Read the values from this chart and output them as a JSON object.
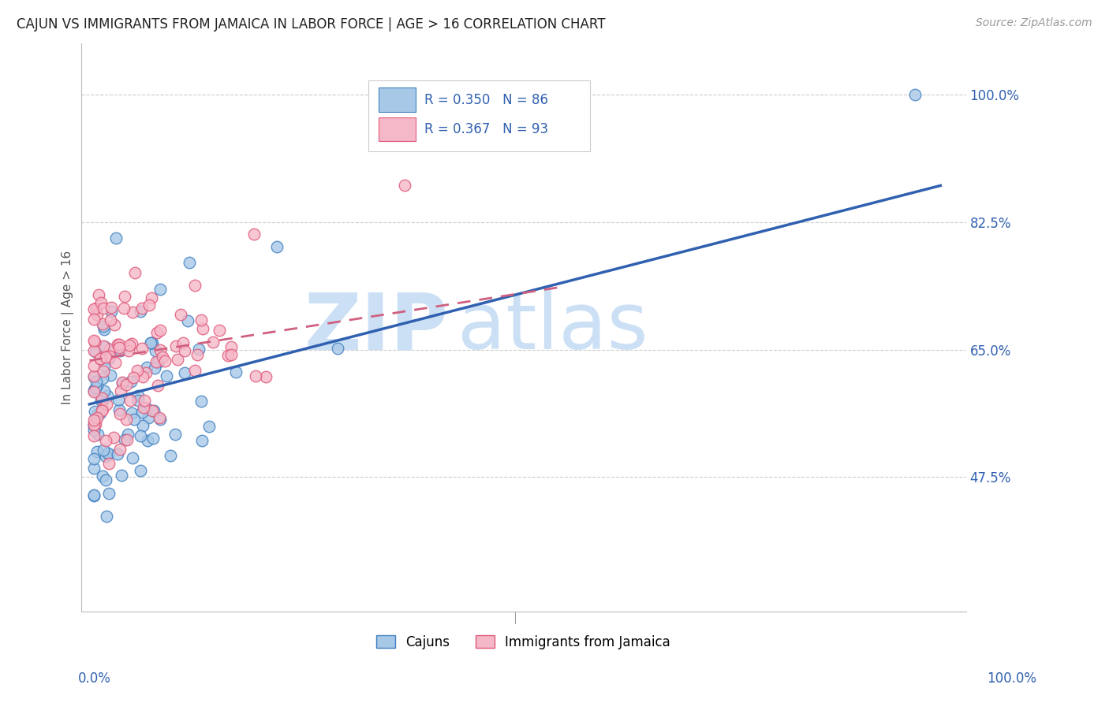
{
  "title": "CAJUN VS IMMIGRANTS FROM JAMAICA IN LABOR FORCE | AGE > 16 CORRELATION CHART",
  "source": "Source: ZipAtlas.com",
  "ylabel": "In Labor Force | Age > 16",
  "ytick_labels": [
    "100.0%",
    "82.5%",
    "65.0%",
    "47.5%"
  ],
  "ytick_values": [
    1.0,
    0.825,
    0.65,
    0.475
  ],
  "xlim": [
    0.0,
    1.0
  ],
  "ylim": [
    0.3,
    1.05
  ],
  "cajun_R": 0.35,
  "cajun_N": 86,
  "jamaica_R": 0.367,
  "jamaica_N": 93,
  "cajun_color_fill": "#a8c8e8",
  "cajun_color_edge": "#4080c0",
  "jamaica_color_fill": "#f5b8c8",
  "jamaica_color_edge": "#e05878",
  "cajun_line_color": "#3060b0",
  "jamaica_line_color": "#d06080",
  "watermark_zip_color": "#cce0f5",
  "watermark_atlas_color": "#cce0f5",
  "legend_text_color": "#3060b0",
  "right_label_color": "#3060b0",
  "grid_color": "#cccccc",
  "background": "#ffffff",
  "cajun_trend_x0": 0.0,
  "cajun_trend_y0": 0.575,
  "cajun_trend_x1": 1.0,
  "cajun_trend_y1": 0.875,
  "jamaica_trend_x0": 0.0,
  "jamaica_trend_y0": 0.635,
  "jamaica_trend_x1": 0.55,
  "jamaica_trend_y1": 0.735
}
